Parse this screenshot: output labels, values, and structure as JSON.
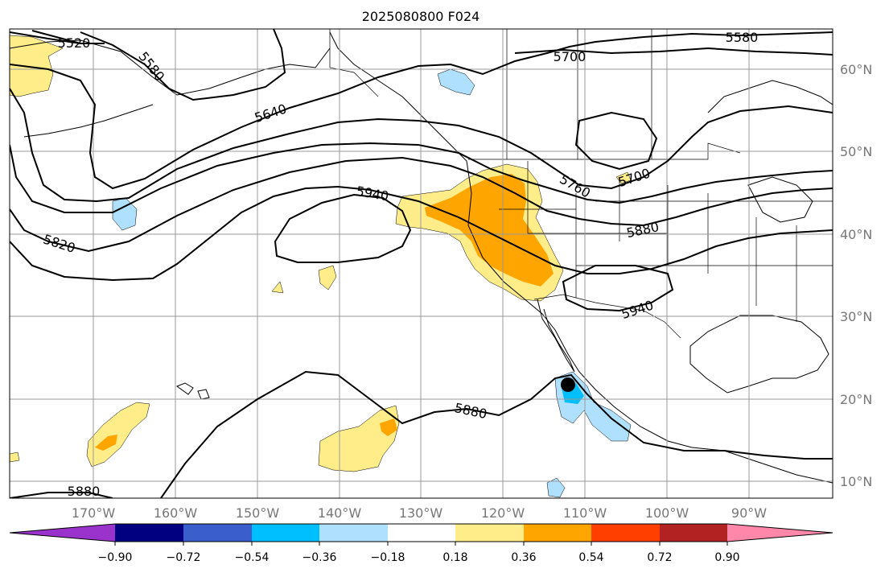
{
  "title": "2025080800 F024",
  "longitude_labels": [
    "170°W",
    "160°W",
    "150°W",
    "140°W",
    "130°W",
    "120°W",
    "110°W",
    "100°W",
    "90°W"
  ],
  "latitude_labels": [
    "60°N",
    "50°N",
    "40°N",
    "30°N",
    "20°N",
    "10°N"
  ],
  "contour_labels": [
    {
      "text": "5520"
    },
    {
      "text": "5580"
    },
    {
      "text": "5580"
    },
    {
      "text": "5640"
    },
    {
      "text": "5700"
    },
    {
      "text": "5700"
    },
    {
      "text": "5760"
    },
    {
      "text": "5820"
    },
    {
      "text": "5880"
    },
    {
      "text": "5880"
    },
    {
      "text": "5880"
    },
    {
      "text": "5940"
    },
    {
      "text": "5940"
    }
  ],
  "colorbar": {
    "colors": [
      "#9933cc",
      "#000080",
      "#3a5fcd",
      "#00bfff",
      "#afe1ff",
      "#ffffff",
      "#ffed8a",
      "#ffa500",
      "#ff3f00",
      "#b22222",
      "#ff88aa"
    ],
    "tick_labels": [
      "−0.90",
      "−0.72",
      "−0.54",
      "−0.36",
      "−0.18",
      "0.18",
      "0.36",
      "0.54",
      "0.72",
      "0.90"
    ]
  },
  "fill_colors": {
    "light_yellow": "#ffed8a",
    "orange": "#ffa500",
    "light_blue": "#afe1ff",
    "blue": "#00bfff"
  }
}
